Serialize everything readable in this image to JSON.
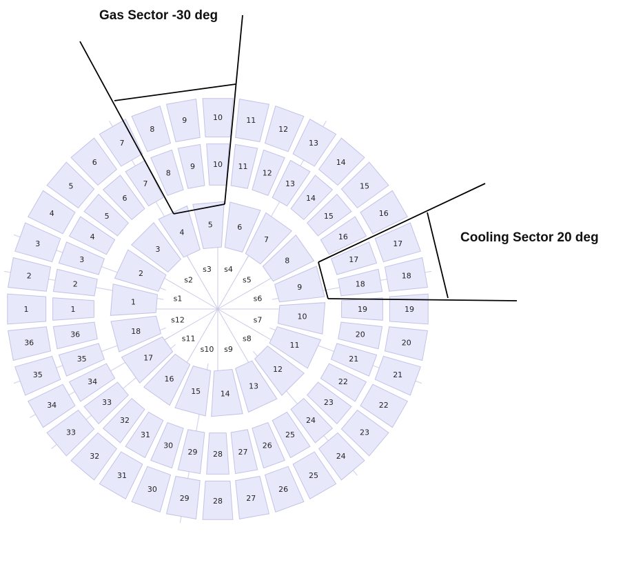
{
  "annotations": {
    "gas_sector": "Gas Sector -30 deg",
    "cooling_sector": "Cooling Sector 20 deg"
  },
  "rings": {
    "outer": [
      "1",
      "2",
      "3",
      "4",
      "5",
      "6",
      "7",
      "8",
      "9",
      "10",
      "11",
      "12",
      "13",
      "14",
      "15",
      "16",
      "17",
      "18",
      "19",
      "20",
      "21",
      "22",
      "23",
      "24",
      "25",
      "26",
      "27",
      "28",
      "29",
      "30",
      "31",
      "32",
      "33",
      "34",
      "35",
      "36"
    ],
    "middle": [
      "1",
      "2",
      "3",
      "4",
      "5",
      "6",
      "7",
      "8",
      "9",
      "10",
      "11",
      "12",
      "13",
      "14",
      "15",
      "16",
      "17",
      "18",
      "19",
      "20",
      "21",
      "22",
      "23",
      "24",
      "25",
      "26",
      "27",
      "28",
      "29",
      "30",
      "31",
      "32",
      "33",
      "34",
      "35",
      "36"
    ],
    "inner": [
      "1",
      "2",
      "3",
      "4",
      "5",
      "6",
      "7",
      "8",
      "9",
      "10",
      "11",
      "12",
      "13",
      "14",
      "15",
      "16",
      "17",
      "18"
    ],
    "spokes": [
      "s1",
      "s2",
      "s3",
      "s4",
      "s5",
      "s6",
      "s7",
      "s8",
      "s9",
      "s10",
      "s11",
      "s12"
    ]
  },
  "colors": {
    "tile_fill": "#e8e8fb",
    "tile_stroke": "#c2c2e6",
    "annotation": "#000000"
  }
}
